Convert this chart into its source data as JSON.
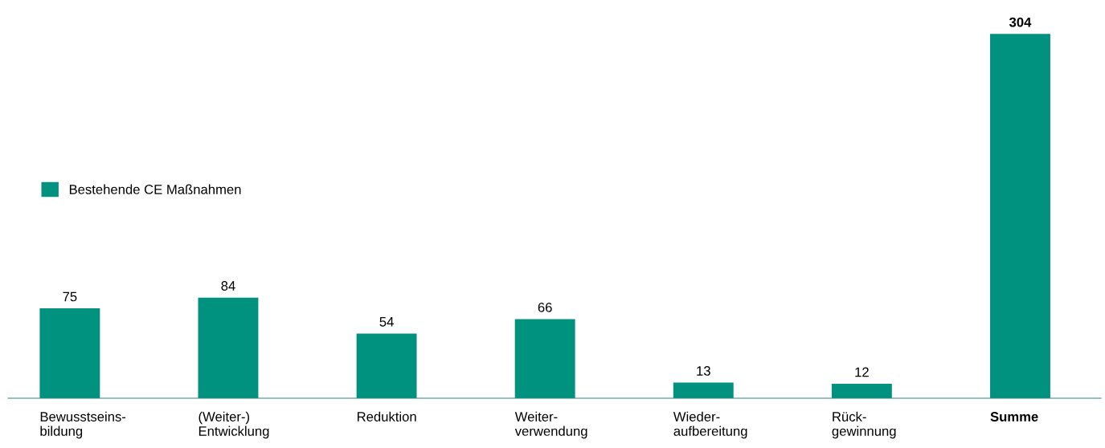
{
  "chart_data": {
    "type": "bar",
    "categories": [
      "Bewusstseins-\nbildung",
      "(Weiter-)\nEntwicklung",
      "Reduktion",
      "Weiter-\nverwendung",
      "Wieder-\naufbereitung",
      "Rück-\ngewinnung",
      "Summe"
    ],
    "series": [
      {
        "name": "Bestehende CE Maßnahmen",
        "color": "#00917f",
        "values": [
          75,
          84,
          54,
          66,
          13,
          12,
          304
        ]
      }
    ],
    "data_labels": true,
    "legend": "left",
    "grid": false
  }
}
